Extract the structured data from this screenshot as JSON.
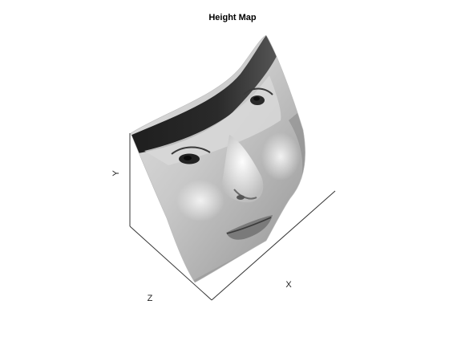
{
  "chart_data": {
    "type": "surface",
    "title": "Height Map",
    "xlabel": "X",
    "ylabel": "Y",
    "zlabel": "Z",
    "grid": false,
    "colormap": "grayscale",
    "surface_content": "photographic texture of a human face"
  }
}
